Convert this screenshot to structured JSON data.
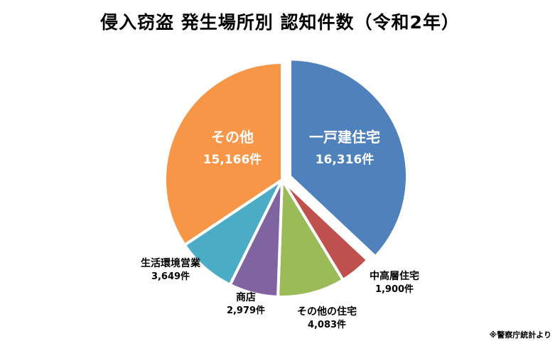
{
  "title": "侵入窃盗 発生場所別 認知件数（令和2年）",
  "source": "※警察庁統計より",
  "unit": "件",
  "colors": {
    "一戸建住宅": "#4f81bd",
    "中高層住宅": "#c0504d",
    "その他の住宅": "#9bbb59",
    "商店": "#8064a2",
    "生活環境営業": "#4bacc6",
    "その他": "#f79646"
  },
  "chart_data": {
    "type": "pie",
    "title": "侵入窃盗 発生場所別 認知件数（令和2年）",
    "start": "12 o'clock",
    "direction": "clockwise",
    "legend": "none",
    "slices": [
      {
        "label": "一戸建住宅",
        "value": 16316,
        "value_text": "16,316件",
        "exploded": true,
        "label_position": "inside"
      },
      {
        "label": "中高層住宅",
        "value": 1900,
        "value_text": "1,900件",
        "exploded": false,
        "label_position": "outside"
      },
      {
        "label": "その他の住宅",
        "value": 4083,
        "value_text": "4,083件",
        "exploded": false,
        "label_position": "outside"
      },
      {
        "label": "商店",
        "value": 2979,
        "value_text": "2,979件",
        "exploded": false,
        "label_position": "outside"
      },
      {
        "label": "生活環境営業",
        "value": 3649,
        "value_text": "3,649件",
        "exploded": false,
        "label_position": "outside"
      },
      {
        "label": "その他",
        "value": 15166,
        "value_text": "15,166件",
        "exploded": false,
        "label_position": "inside"
      }
    ]
  }
}
